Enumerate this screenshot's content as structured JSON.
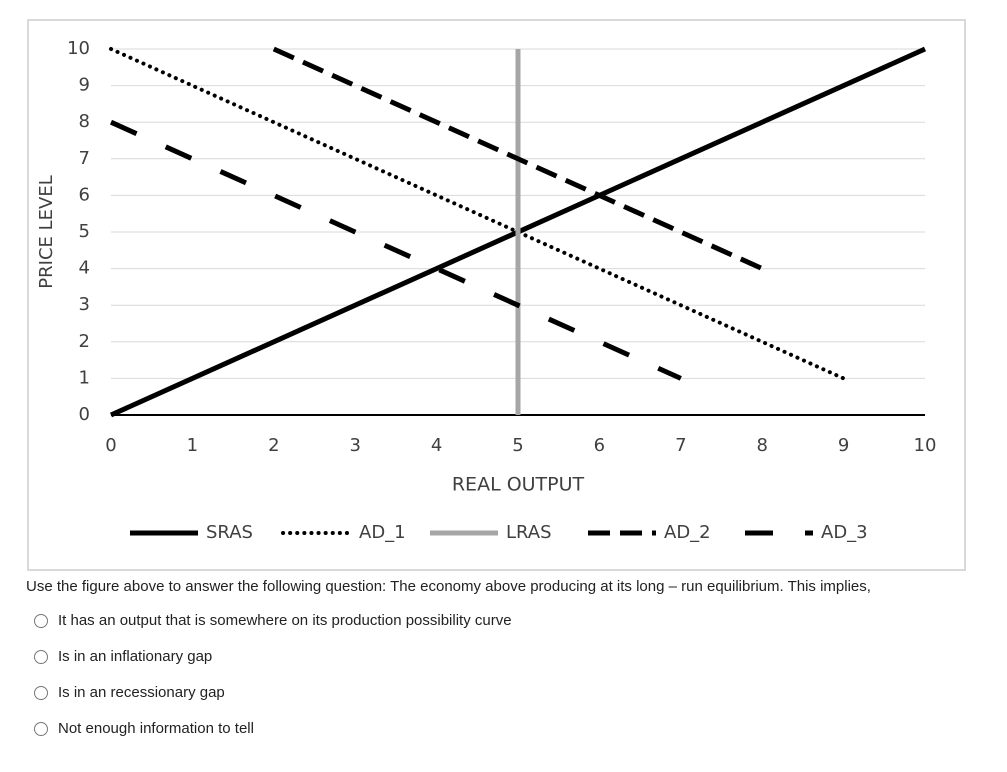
{
  "chart_data": {
    "type": "line",
    "xlabel": "REAL OUTPUT",
    "ylabel": "PRICE LEVEL",
    "xlim": [
      0,
      10
    ],
    "ylim": [
      0,
      10
    ],
    "xticks": [
      0,
      1,
      2,
      3,
      4,
      5,
      6,
      7,
      8,
      9,
      10
    ],
    "yticks": [
      0,
      1,
      2,
      3,
      4,
      5,
      6,
      7,
      8,
      9,
      10
    ],
    "grid": true,
    "legend": "bottom",
    "series": [
      {
        "name": "SRAS",
        "color": "#000000",
        "dash": "solid",
        "x": [
          0,
          10
        ],
        "values": [
          0,
          10
        ]
      },
      {
        "name": "AD_1",
        "color": "#000000",
        "dash": "dotted",
        "x": [
          0,
          9
        ],
        "values": [
          10,
          1
        ]
      },
      {
        "name": "LRAS",
        "color": "#a6a6a6",
        "dash": "solid",
        "x": [
          5,
          5
        ],
        "values": [
          0,
          10
        ]
      },
      {
        "name": "AD_2",
        "color": "#000000",
        "dash": "dashed",
        "x": [
          2,
          8
        ],
        "values": [
          10,
          4
        ]
      },
      {
        "name": "AD_3",
        "color": "#000000",
        "dash": "long-dashed",
        "x": [
          0,
          7
        ],
        "values": [
          8,
          1
        ]
      }
    ]
  },
  "question": {
    "prompt": "Use the figure above to answer the following question: The economy above producing at its long – run equilibrium. This implies,",
    "options": [
      "It has an output that is somewhere on its production possibility curve",
      "Is in an inflationary gap",
      "Is in an recessionary gap",
      "Not enough information to tell"
    ]
  }
}
